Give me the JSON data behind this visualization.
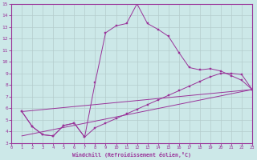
{
  "line1_x": [
    1,
    2,
    3,
    4,
    5,
    6,
    7,
    8,
    9,
    10,
    11,
    12,
    13,
    14,
    15,
    16,
    17,
    18,
    19,
    20,
    21,
    22,
    23
  ],
  "line1_y": [
    5.7,
    4.4,
    3.7,
    3.6,
    4.5,
    4.7,
    3.5,
    8.2,
    12.5,
    13.1,
    13.3,
    15.0,
    13.3,
    12.8,
    12.2,
    10.8,
    9.5,
    9.3,
    9.4,
    9.2,
    8.8,
    8.4,
    7.6
  ],
  "line2_x": [
    1,
    2,
    3,
    4,
    5,
    6,
    7,
    8,
    9,
    10,
    11,
    12,
    13,
    14,
    15,
    16,
    17,
    18,
    19,
    20,
    21,
    22,
    23
  ],
  "line2_y": [
    5.7,
    4.4,
    3.7,
    3.6,
    4.5,
    4.7,
    3.5,
    4.3,
    4.7,
    5.1,
    5.5,
    5.9,
    6.3,
    6.7,
    7.1,
    7.5,
    7.9,
    8.3,
    8.7,
    9.0,
    9.0,
    8.9,
    7.6
  ],
  "line3_x": [
    1,
    23
  ],
  "line3_y": [
    5.7,
    7.6
  ],
  "line4_x": [
    1,
    23
  ],
  "line4_y": [
    3.6,
    7.6
  ],
  "color": "#993399",
  "bg_color": "#cce8e8",
  "grid_color": "#b5cccc",
  "xlabel": "Windchill (Refroidissement éolien,°C)",
  "xlim": [
    0,
    23
  ],
  "ylim": [
    3,
    15
  ],
  "yticks": [
    3,
    4,
    5,
    6,
    7,
    8,
    9,
    10,
    11,
    12,
    13,
    14,
    15
  ],
  "xticks": [
    0,
    1,
    2,
    3,
    4,
    5,
    6,
    7,
    8,
    9,
    10,
    11,
    12,
    13,
    14,
    15,
    16,
    17,
    18,
    19,
    20,
    21,
    22,
    23
  ]
}
